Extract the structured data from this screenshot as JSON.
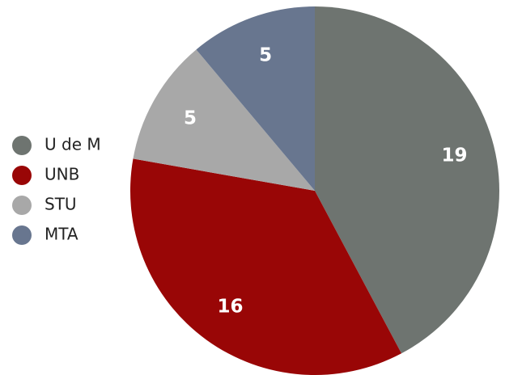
{
  "chart_data": {
    "type": "pie",
    "categories": [
      "U de M",
      "UNB",
      "STU",
      "MTA"
    ],
    "values": [
      19,
      16,
      5,
      5
    ],
    "colors": [
      "#6e7470",
      "#990606",
      "#a8a8a8",
      "#68768f"
    ],
    "legend": "left"
  }
}
